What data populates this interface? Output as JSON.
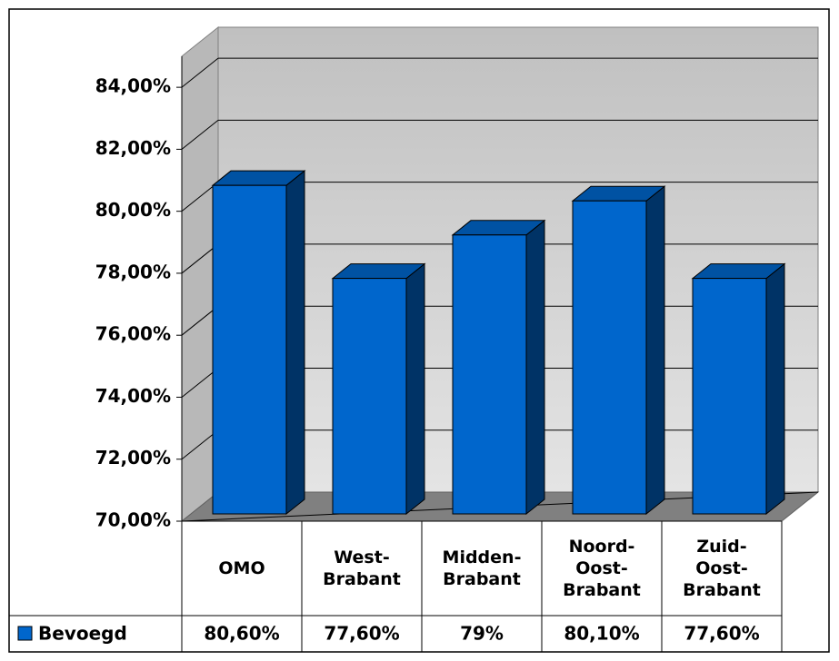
{
  "chart_data": {
    "type": "bar3d",
    "categories": [
      "OMO",
      "West-Brabant",
      "Midden-Brabant",
      "Noord-Oost-Brabant",
      "Zuid-Oost-Brabant"
    ],
    "series": [
      {
        "name": "Bevoegd",
        "color": "#0066cc",
        "values": [
          80.6,
          77.6,
          79,
          80.1,
          77.6
        ],
        "value_labels": [
          "80,60%",
          "77,60%",
          "79%",
          "80,10%",
          "77,60%"
        ]
      }
    ],
    "ylim": [
      70,
      85
    ],
    "yticks": [
      {
        "value": 70,
        "label": "70,00%"
      },
      {
        "value": 72,
        "label": "72,00%"
      },
      {
        "value": 74,
        "label": "74,00%"
      },
      {
        "value": 76,
        "label": "76,00%"
      },
      {
        "value": 78,
        "label": "78,00%"
      },
      {
        "value": 80,
        "label": "80,00%"
      },
      {
        "value": 82,
        "label": "82,00%"
      },
      {
        "value": 84,
        "label": "84,00%"
      }
    ],
    "grid": true,
    "legend": "table"
  }
}
